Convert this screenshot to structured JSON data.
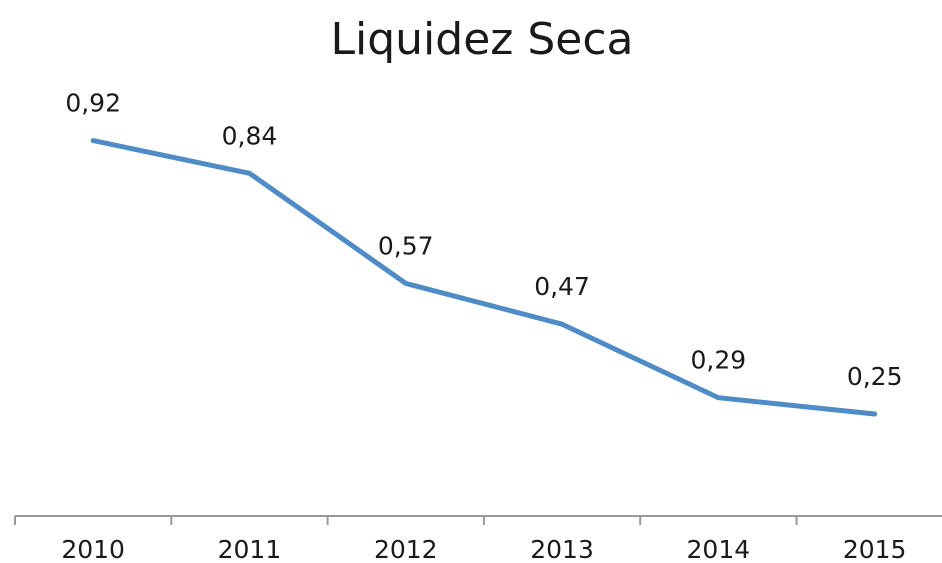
{
  "chart_data": {
    "type": "line",
    "title": "Liquidez Seca",
    "categories": [
      "2010",
      "2011",
      "2012",
      "2013",
      "2014",
      "2015"
    ],
    "series": [
      {
        "name": "Liquidez Seca",
        "color": "#4f8bc6",
        "values": [
          0.92,
          0.84,
          0.57,
          0.47,
          0.29,
          0.25
        ],
        "value_labels": [
          "0,92",
          "0,84",
          "0,57",
          "0,47",
          "0,29",
          "0,25"
        ]
      }
    ],
    "ylim": [
      0,
      1
    ]
  }
}
